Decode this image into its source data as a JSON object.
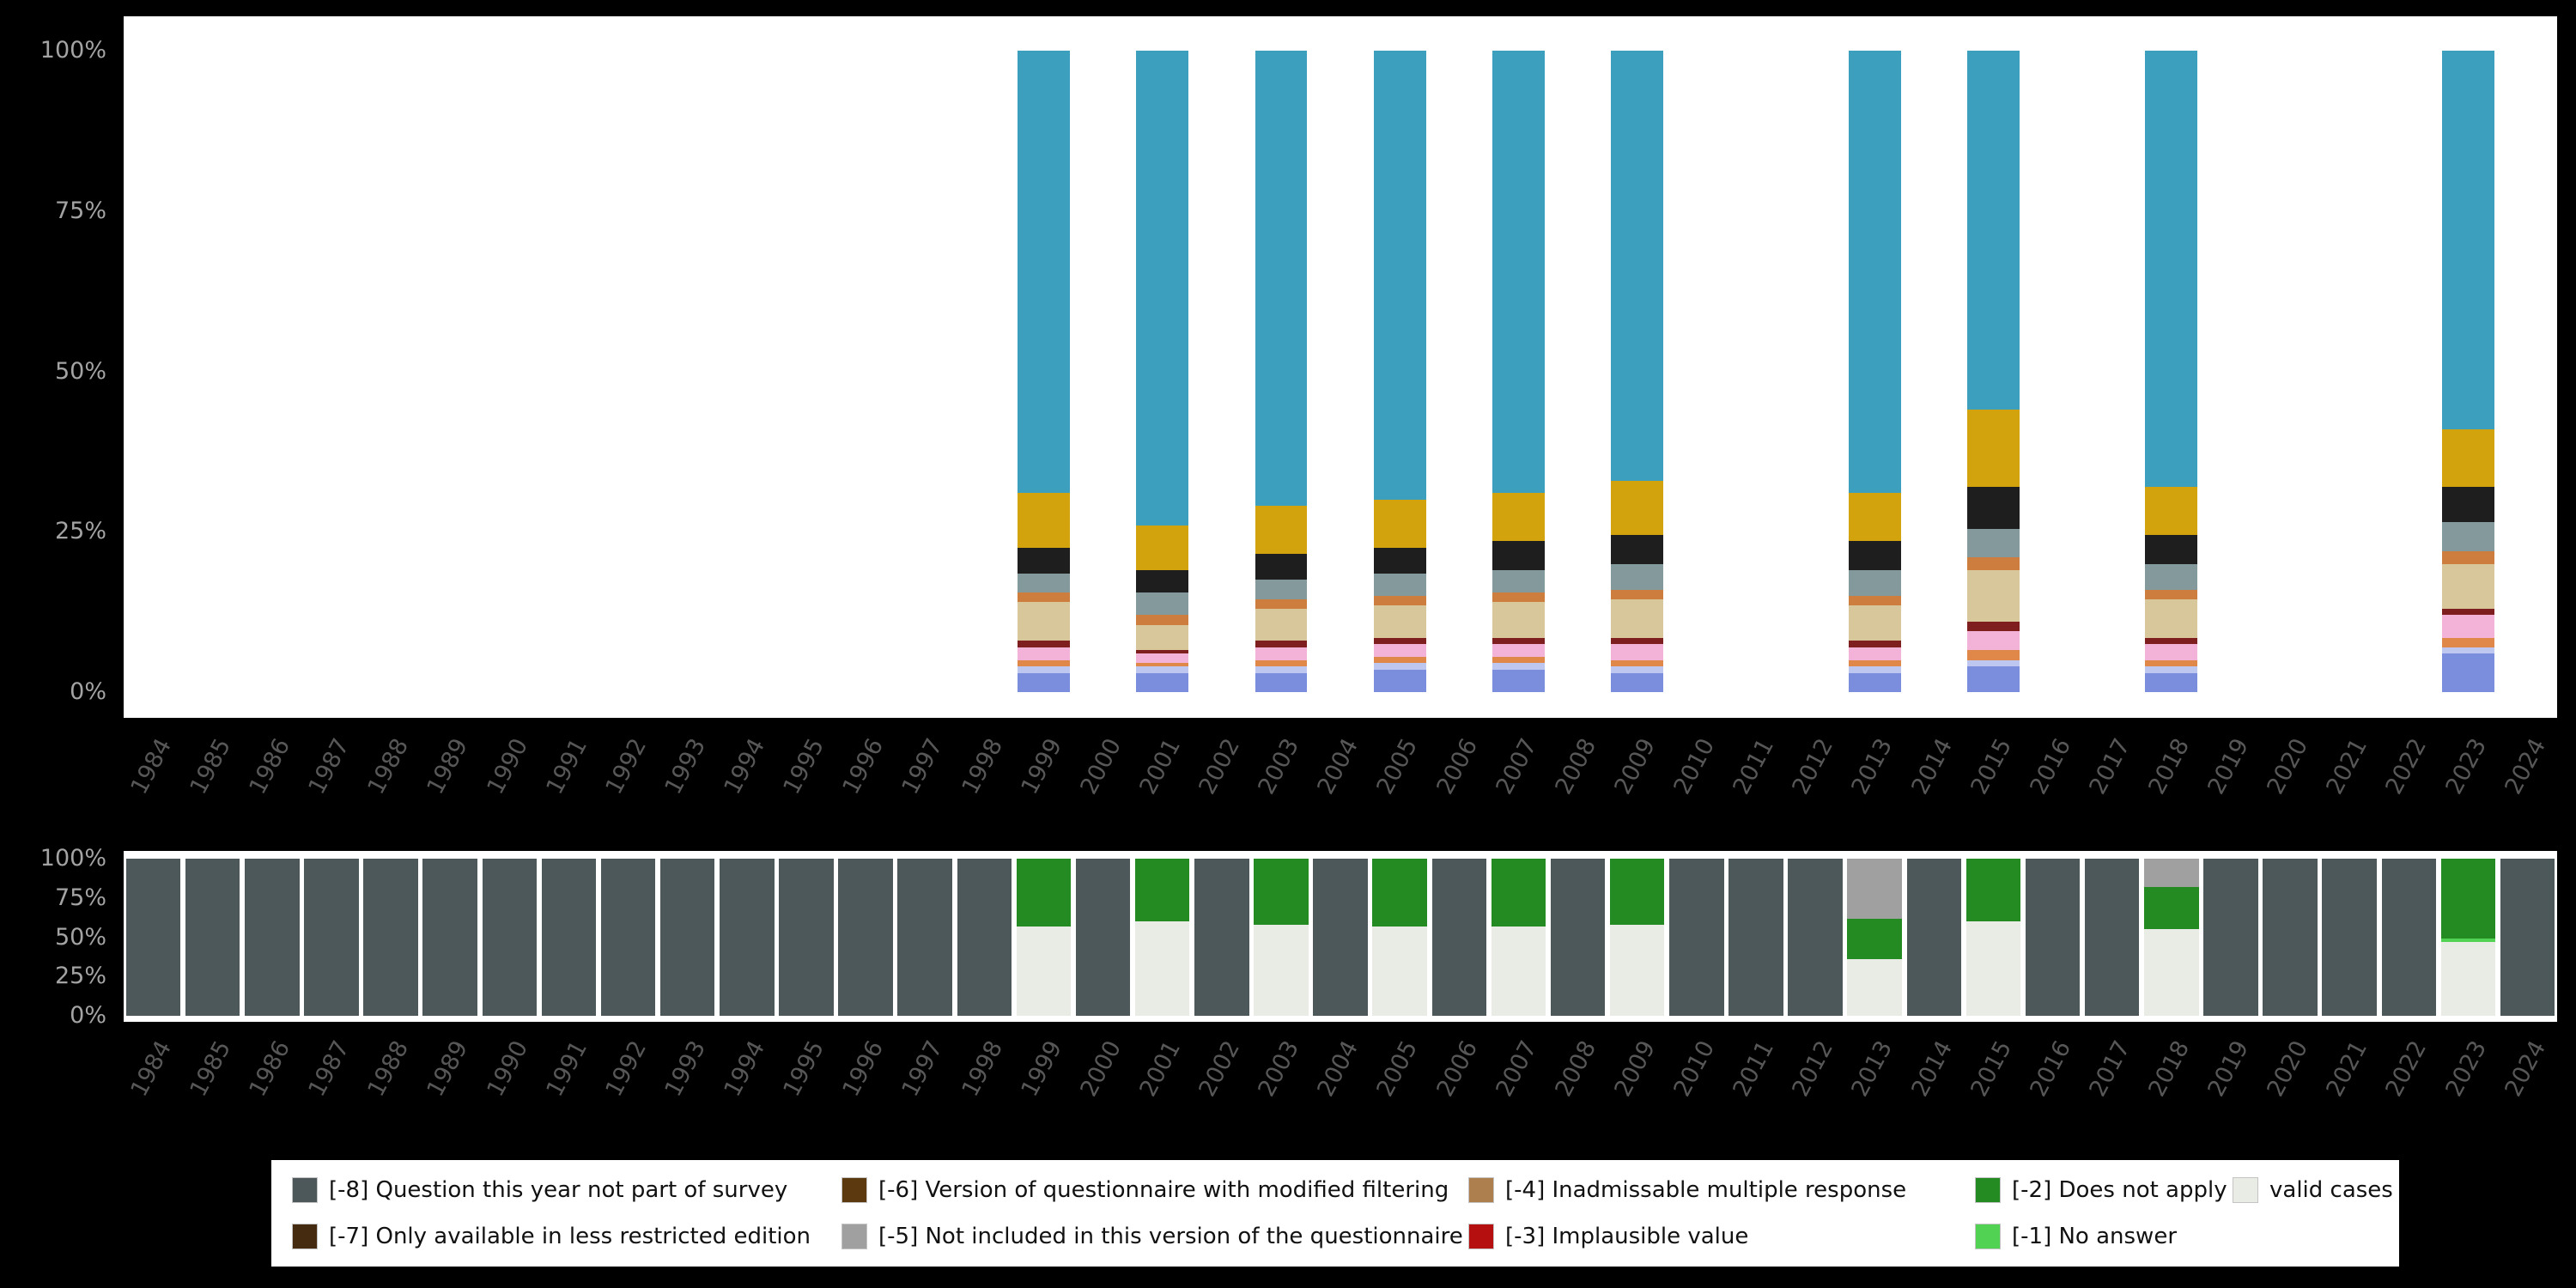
{
  "page": {
    "background_color": "#000000",
    "panel_color": "#ffffff",
    "axis_text_color": "#a3a3a3",
    "year_text_color": "#575757"
  },
  "legend": {
    "rows": [
      [
        {
          "code": "-8",
          "label": "[-8] Question this year not part of survey",
          "color": "#4c585a"
        },
        {
          "code": "-6",
          "label": "[-6] Version of questionnaire with modified filtering",
          "color": "#5c390f"
        },
        {
          "code": "-4",
          "label": "[-4] Inadmissable multiple response",
          "color": "#ad7f4e"
        },
        {
          "code": "-2",
          "label": "[-2] Does not apply",
          "color": "#238b22"
        },
        {
          "code": "valid",
          "label": "valid cases",
          "color": "#e9ece5"
        }
      ],
      [
        {
          "code": "-7",
          "label": "[-7] Only available in less restricted edition",
          "color": "#452c10"
        },
        {
          "code": "-5",
          "label": "[-5] Not included in this version of the questionnaire",
          "color": "#a0a0a0"
        },
        {
          "code": "-3",
          "label": "[-3] Implausible value",
          "color": "#b50f0f"
        },
        {
          "code": "-1",
          "label": "[-1] No answer",
          "color": "#52d252"
        }
      ]
    ]
  },
  "chart_data": [
    {
      "name": "value-distribution-by-year",
      "type": "bar",
      "stacked": true,
      "orientation": "vertical",
      "grid": false,
      "legend_position": "none",
      "y_unit": "percent",
      "ylim": [
        0,
        100
      ],
      "yticks_top_to_bottom": [
        "100%",
        "75%",
        "50%",
        "25%",
        "0%"
      ],
      "categories": [
        "1984",
        "1985",
        "1986",
        "1987",
        "1988",
        "1989",
        "1990",
        "1991",
        "1992",
        "1993",
        "1994",
        "1995",
        "1996",
        "1997",
        "1998",
        "1999",
        "2000",
        "2001",
        "2002",
        "2003",
        "2004",
        "2005",
        "2006",
        "2007",
        "2008",
        "2009",
        "2010",
        "2011",
        "2012",
        "2013",
        "2014",
        "2015",
        "2016",
        "2017",
        "2018",
        "2019",
        "2020",
        "2021",
        "2022",
        "2023",
        "2024"
      ],
      "series": [
        {
          "name": "segment-1",
          "color": "#7b8ede",
          "default": 0,
          "values_by_year": {
            "1999": 3,
            "2001": 3,
            "2003": 3,
            "2005": 3.5,
            "2007": 3.5,
            "2009": 3,
            "2013": 3,
            "2015": 4,
            "2018": 3,
            "2023": 6
          }
        },
        {
          "name": "segment-2",
          "color": "#bdc7ef",
          "default": 0,
          "values_by_year": {
            "1999": 1,
            "2001": 1,
            "2003": 1,
            "2005": 1,
            "2007": 1,
            "2009": 1,
            "2013": 1,
            "2015": 1,
            "2018": 1,
            "2023": 1
          }
        },
        {
          "name": "segment-3",
          "color": "#e0884a",
          "default": 0,
          "values_by_year": {
            "1999": 1,
            "2001": 0.5,
            "2003": 1,
            "2005": 1,
            "2007": 1,
            "2009": 1,
            "2013": 1,
            "2015": 1.5,
            "2018": 1,
            "2023": 1.5
          }
        },
        {
          "name": "segment-4",
          "color": "#f3b3d9",
          "default": 0,
          "values_by_year": {
            "1999": 2,
            "2001": 1.5,
            "2003": 2,
            "2005": 2,
            "2007": 2,
            "2009": 2.5,
            "2013": 2,
            "2015": 3,
            "2018": 2.5,
            "2023": 3.5
          }
        },
        {
          "name": "segment-5",
          "color": "#7e1e1e",
          "default": 0,
          "values_by_year": {
            "1999": 1,
            "2001": 0.5,
            "2003": 1,
            "2005": 1,
            "2007": 1,
            "2009": 1,
            "2013": 1,
            "2015": 1.5,
            "2018": 1,
            "2023": 1
          }
        },
        {
          "name": "segment-6",
          "color": "#d8c79b",
          "default": 0,
          "values_by_year": {
            "1999": 6,
            "2001": 4,
            "2003": 5,
            "2005": 5,
            "2007": 5.5,
            "2009": 6,
            "2013": 5.5,
            "2015": 8,
            "2018": 6,
            "2023": 7
          }
        },
        {
          "name": "segment-7",
          "color": "#cd7e3f",
          "default": 0,
          "values_by_year": {
            "1999": 1.5,
            "2001": 1.5,
            "2003": 1.5,
            "2005": 1.5,
            "2007": 1.5,
            "2009": 1.5,
            "2013": 1.5,
            "2015": 2,
            "2018": 1.5,
            "2023": 2
          }
        },
        {
          "name": "segment-8",
          "color": "#84999b",
          "default": 0,
          "values_by_year": {
            "1999": 3,
            "2001": 3.5,
            "2003": 3,
            "2005": 3.5,
            "2007": 3.5,
            "2009": 4,
            "2013": 4,
            "2015": 4.5,
            "2018": 4,
            "2023": 4.5
          }
        },
        {
          "name": "segment-9",
          "color": "#1e1e1e",
          "default": 0,
          "values_by_year": {
            "1999": 4,
            "2001": 3.5,
            "2003": 4,
            "2005": 4,
            "2007": 4.5,
            "2009": 4.5,
            "2013": 4.5,
            "2015": 6.5,
            "2018": 4.5,
            "2023": 5.5
          }
        },
        {
          "name": "segment-10",
          "color": "#d2a30c",
          "default": 0,
          "values_by_year": {
            "1999": 8.5,
            "2001": 7,
            "2003": 7.5,
            "2005": 7.5,
            "2007": 7.5,
            "2009": 8.5,
            "2013": 7.5,
            "2015": 12,
            "2018": 7.5,
            "2023": 9
          }
        },
        {
          "name": "segment-11",
          "color": "#3d9fbe",
          "default": 0,
          "values_by_year": {
            "1999": 69,
            "2001": 74,
            "2003": 71,
            "2005": 70,
            "2007": 69,
            "2009": 67,
            "2013": 69,
            "2015": 56,
            "2018": 68,
            "2023": 59
          }
        }
      ]
    },
    {
      "name": "missing-values-by-year",
      "type": "bar",
      "stacked": true,
      "orientation": "vertical",
      "grid": false,
      "legend_position": "bottom",
      "y_unit": "percent",
      "ylim": [
        0,
        100
      ],
      "yticks_top_to_bottom": [
        "100%",
        "75%",
        "50%",
        "25%",
        "0%"
      ],
      "categories": [
        "1984",
        "1985",
        "1986",
        "1987",
        "1988",
        "1989",
        "1990",
        "1991",
        "1992",
        "1993",
        "1994",
        "1995",
        "1996",
        "1997",
        "1998",
        "1999",
        "2000",
        "2001",
        "2002",
        "2003",
        "2004",
        "2005",
        "2006",
        "2007",
        "2008",
        "2009",
        "2010",
        "2011",
        "2012",
        "2013",
        "2014",
        "2015",
        "2016",
        "2017",
        "2018",
        "2019",
        "2020",
        "2021",
        "2022",
        "2023",
        "2024"
      ],
      "series": [
        {
          "name": "valid cases",
          "color": "#e9ece5",
          "default": 0,
          "values_by_year": {
            "1999": 57,
            "2001": 60,
            "2003": 58,
            "2005": 57,
            "2007": 57,
            "2009": 58,
            "2013": 36,
            "2015": 60,
            "2018": 55,
            "2023": 47
          }
        },
        {
          "name": "[-1] No answer",
          "color": "#52d252",
          "default": 0,
          "values_by_year": {
            "2023": 2
          }
        },
        {
          "name": "[-2] Does not apply",
          "color": "#238b22",
          "default": 0,
          "values_by_year": {
            "1999": 43,
            "2001": 40,
            "2003": 42,
            "2005": 43,
            "2007": 43,
            "2009": 42,
            "2013": 26,
            "2015": 40,
            "2018": 27,
            "2023": 51
          }
        },
        {
          "name": "[-3] Implausible value",
          "color": "#b50f0f",
          "default": 0,
          "values_by_year": {}
        },
        {
          "name": "[-4] Inadmissable multiple response",
          "color": "#ad7f4e",
          "default": 0,
          "values_by_year": {}
        },
        {
          "name": "[-5] Not included in this version of the questionnaire",
          "color": "#a0a0a0",
          "default": 0,
          "values_by_year": {
            "2013": 38,
            "2018": 18
          }
        },
        {
          "name": "[-6] Version of questionnaire with modified filtering",
          "color": "#5c390f",
          "default": 0,
          "values_by_year": {}
        },
        {
          "name": "[-7] Only available in less restricted edition",
          "color": "#452c10",
          "default": 0,
          "values_by_year": {}
        },
        {
          "name": "[-8] Question this year not part of survey",
          "color": "#4c585a",
          "default": 100,
          "values_by_year": {
            "1999": 0,
            "2001": 0,
            "2003": 0,
            "2005": 0,
            "2007": 0,
            "2009": 0,
            "2013": 0,
            "2015": 0,
            "2018": 0,
            "2023": 0
          }
        }
      ]
    }
  ]
}
